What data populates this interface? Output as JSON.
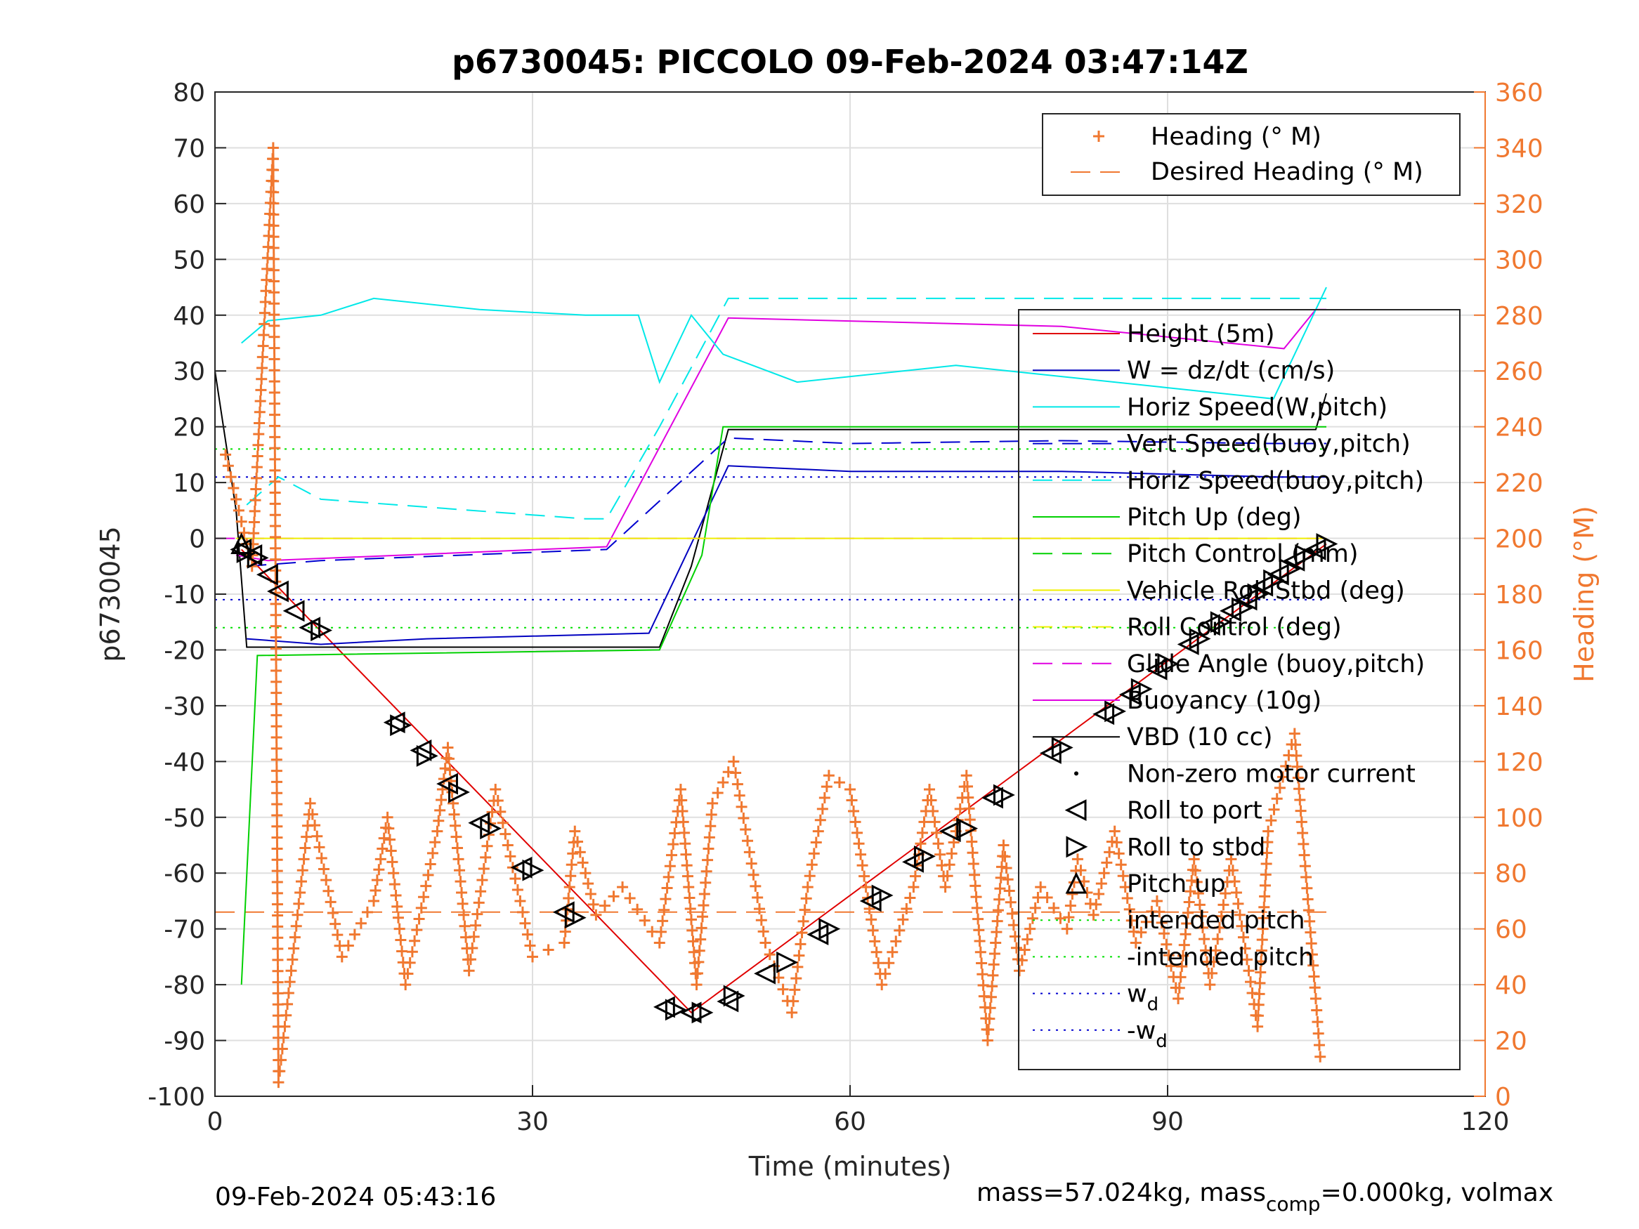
{
  "chart_data": {
    "type": "line",
    "title": "p6730045: PICCOLO 09-Feb-2024 03:47:14Z",
    "xlabel": "Time (minutes)",
    "ylabel": "p6730045",
    "ylabel_right": "Heading (°M)",
    "xlim": [
      0,
      120
    ],
    "ylim": [
      -100,
      80
    ],
    "ylim_right": [
      0,
      360
    ],
    "x_ticks": [
      "0",
      "30",
      "60",
      "90",
      "120"
    ],
    "y_ticks": [
      "80",
      "70",
      "60",
      "50",
      "40",
      "30",
      "20",
      "10",
      "0",
      "-10",
      "-20",
      "-30",
      "-40",
      "-50",
      "-60",
      "-70",
      "-80",
      "-90",
      "-100"
    ],
    "y_ticks_right": [
      "360",
      "340",
      "320",
      "300",
      "280",
      "260",
      "240",
      "220",
      "200",
      "180",
      "160",
      "140",
      "120",
      "100",
      "80",
      "60",
      "40",
      "20",
      "0"
    ],
    "grid": true,
    "colors": {
      "height": "#e00000",
      "w": "#0000c0",
      "horiz": "#00e8e8",
      "vert": "#0000d0",
      "pitch": "#00d000",
      "roll": "#f0f000",
      "glide": "#e000e0",
      "buoy": "#e000e0",
      "vbd": "#000000",
      "heading": "#f07830",
      "intended": "#00e000",
      "wd": "#0000d0"
    },
    "heading_legend": {
      "placement": "top-right",
      "entries": [
        "Heading (° M)",
        "Desired Heading (° M)"
      ]
    },
    "legend": {
      "placement": "right",
      "entries": [
        "Height (5m)",
        "W = dz/dt (cm/s)",
        "Horiz Speed(W,pitch)",
        "Vert Speed(buoy,pitch)",
        "Horiz Speed(buoy,pitch)",
        "Pitch Up (deg)",
        "Pitch Control (mm)",
        "Vehicle Roll Stbd (deg)",
        "Roll Control (deg)",
        "Glide Angle (buoy,pitch)",
        "Buoyancy (10g)",
        "VBD (10 cc)",
        "Non-zero motor current",
        "Roll to port",
        "Roll to stbd",
        "Pitch up",
        "intended pitch",
        "-intended pitch",
        "w",
        "-w"
      ],
      "subscript_entries": {
        "w": "d",
        "-w": "d"
      }
    },
    "series": [
      {
        "name": "Height (5m)",
        "x": [
          2.5,
          45,
          105
        ],
        "y": [
          -2,
          -85,
          -1
        ]
      },
      {
        "name": "Desired Heading (° M)",
        "x": [
          0,
          105
        ],
        "y_right": [
          66,
          66
        ]
      },
      {
        "name": "intended pitch",
        "x": [
          0,
          105
        ],
        "y": [
          16,
          16
        ]
      },
      {
        "name": "-intended pitch",
        "x": [
          0,
          105
        ],
        "y": [
          -16,
          -16
        ]
      },
      {
        "name": "w",
        "x": [
          0,
          105
        ],
        "y": [
          11,
          11
        ]
      },
      {
        "name": "-w",
        "x": [
          0,
          105
        ],
        "y": [
          -11,
          -11
        ]
      },
      {
        "name": "VBD (10 cc)",
        "x": [
          0,
          2,
          3,
          42,
          45,
          48.5,
          104,
          105
        ],
        "y": [
          30,
          5,
          -19.5,
          -19.5,
          -5,
          19.5,
          19.5,
          26
        ]
      },
      {
        "name": "Buoyancy (10g)",
        "x": [
          2,
          5,
          37,
          48.5,
          80,
          101,
          104,
          105
        ],
        "y": [
          -3,
          -4,
          -1.5,
          39.5,
          38,
          34,
          41,
          41
        ]
      },
      {
        "name": "Glide Angle (buoy,pitch)",
        "x": [
          0,
          105
        ],
        "y": [
          0,
          0
        ]
      },
      {
        "name": "Horiz Speed(buoy,pitch)",
        "x": [
          3,
          6,
          10,
          35,
          37,
          42,
          48.5,
          105
        ],
        "y": [
          6,
          11,
          7,
          3.5,
          3.5,
          20,
          43,
          43
        ]
      },
      {
        "name": "Vert Speed(buoy,pitch)",
        "x": [
          3,
          10,
          37,
          48.5,
          60,
          80,
          100,
          105
        ],
        "y": [
          -5,
          -4,
          -2,
          18,
          17,
          17.5,
          17,
          17
        ]
      },
      {
        "name": "W = dz/dt (cm/s)",
        "x": [
          3,
          10,
          20,
          41,
          44,
          48.5,
          60,
          80,
          100,
          105
        ],
        "y": [
          -18,
          -19,
          -18,
          -17,
          -5,
          13,
          12,
          12,
          11,
          11
        ]
      },
      {
        "name": "Horiz Speed(W,pitch)",
        "x": [
          2.5,
          5,
          10,
          15,
          25,
          35,
          40,
          42,
          45,
          48,
          55,
          70,
          90,
          100,
          105
        ],
        "y": [
          35,
          39,
          40,
          43,
          41,
          40,
          40,
          28,
          40,
          33,
          28,
          31,
          27,
          25,
          45
        ]
      },
      {
        "name": "Pitch Up (deg)",
        "x": [
          2.5,
          4,
          42,
          46,
          48,
          105
        ],
        "y": [
          -80,
          -21,
          -20,
          -3,
          20,
          20
        ]
      },
      {
        "name": "Vehicle Roll Stbd (deg)",
        "x": [
          2,
          105
        ],
        "y": [
          0,
          0
        ]
      },
      {
        "name": "Heading (° M)",
        "x": [
          1,
          3.5,
          5.5,
          6,
          9,
          12,
          15,
          16.3,
          18,
          21,
          22,
          24,
          26.5,
          30,
          33,
          34,
          36,
          38.5,
          42,
          44,
          45.5,
          47,
          49,
          52,
          54.5,
          56,
          58,
          60,
          63,
          66,
          67.5,
          69,
          71,
          73,
          74.5,
          76,
          78,
          80.5,
          81.5,
          83,
          85,
          87,
          89,
          91,
          92.5,
          94,
          96,
          98.5,
          99.5,
          102,
          104,
          104.5
        ],
        "y_right": [
          230,
          190,
          340,
          5,
          105,
          50,
          70,
          100,
          40,
          95,
          125,
          45,
          110,
          50,
          55,
          95,
          65,
          75,
          55,
          110,
          40,
          105,
          120,
          55,
          30,
          75,
          115,
          110,
          40,
          75,
          110,
          75,
          115,
          20,
          90,
          45,
          75,
          60,
          85,
          65,
          95,
          55,
          70,
          35,
          85,
          40,
          85,
          25,
          95,
          130,
          35,
          10
        ]
      }
    ],
    "markers": {
      "roll_to_port": [
        [
          2.5,
          -2
        ],
        [
          3.5,
          -3
        ],
        [
          5,
          -6.5
        ],
        [
          6,
          -9.5
        ],
        [
          7.5,
          -13
        ],
        [
          9,
          -16
        ],
        [
          17,
          -33
        ],
        [
          19.5,
          -38
        ],
        [
          22,
          -44
        ],
        [
          25,
          -51
        ],
        [
          29,
          -59
        ],
        [
          33,
          -67
        ],
        [
          42.5,
          -84
        ],
        [
          45,
          -85
        ],
        [
          48.5,
          -83
        ],
        [
          52,
          -78
        ],
        [
          57,
          -71
        ],
        [
          62,
          -65
        ],
        [
          66,
          -58
        ],
        [
          69.5,
          -52.5
        ],
        [
          73.5,
          -46.5
        ],
        [
          79,
          -38.5
        ],
        [
          84,
          -31.5
        ],
        [
          86.5,
          -28
        ],
        [
          89,
          -23.5
        ],
        [
          92,
          -19
        ],
        [
          94,
          -15.5
        ],
        [
          96,
          -13
        ],
        [
          97.5,
          -11
        ],
        [
          99,
          -8.5
        ],
        [
          100.5,
          -6.5
        ],
        [
          102,
          -4
        ],
        [
          104,
          -2
        ]
      ],
      "roll_to_stbd": [
        [
          3,
          -2.5
        ],
        [
          4,
          -3.5
        ],
        [
          10,
          -16.5
        ],
        [
          17.5,
          -33.5
        ],
        [
          20,
          -39
        ],
        [
          23,
          -45.5
        ],
        [
          26,
          -52
        ],
        [
          30,
          -59.5
        ],
        [
          34,
          -68
        ],
        [
          43.5,
          -84.5
        ],
        [
          46,
          -85
        ],
        [
          49,
          -82
        ],
        [
          54,
          -76
        ],
        [
          58,
          -70
        ],
        [
          63,
          -64
        ],
        [
          67,
          -57
        ],
        [
          71,
          -52
        ],
        [
          74.5,
          -46
        ],
        [
          80,
          -37.5
        ],
        [
          85,
          -31
        ],
        [
          87.5,
          -27
        ],
        [
          90,
          -22.5
        ],
        [
          93,
          -18
        ],
        [
          95,
          -15
        ],
        [
          97,
          -12.5
        ],
        [
          98.5,
          -10
        ],
        [
          100,
          -7.5
        ],
        [
          101.5,
          -5.5
        ],
        [
          103,
          -3
        ],
        [
          105,
          -1
        ]
      ],
      "pitch_up": [
        [
          2.5,
          -1
        ]
      ]
    }
  },
  "footer": {
    "left": "09-Feb-2024 05:43:16",
    "right_prefix": "mass=57.024kg, mass",
    "right_sub": "comp",
    "right_suffix": "=0.000kg, volmax"
  }
}
